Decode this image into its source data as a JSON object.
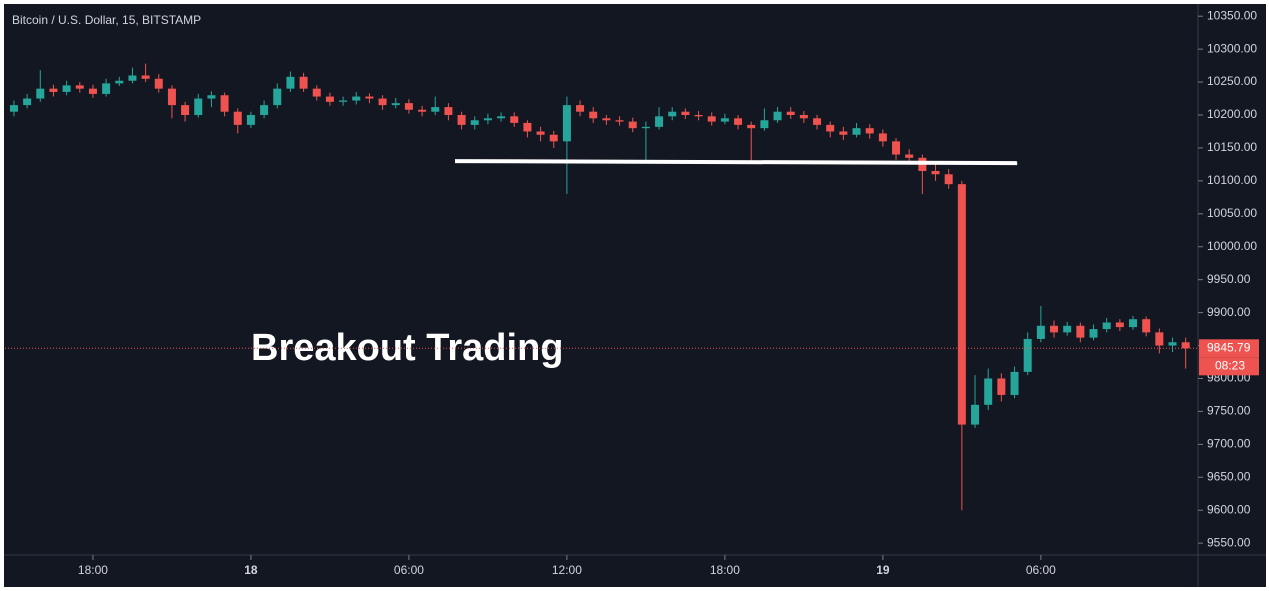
{
  "chart_data": {
    "type": "candlestick",
    "title": "Bitcoin / U.S. Dollar, 15, BITSTAMP",
    "annotation": "Breakout Trading",
    "breakout_line": {
      "x": [
        31.75,
        53.1
      ],
      "y": [
        10130,
        10127
      ],
      "color": "#ffffff"
    },
    "countdown": "08:23",
    "up_color": "#26a69a",
    "down_color": "#ef5350",
    "background": "#131722",
    "xlim": [
      14.66,
      59.93
    ],
    "xticks": [
      {
        "value": 18,
        "label": "18:00"
      },
      {
        "value": 24,
        "label": "18"
      },
      {
        "value": 30,
        "label": "06:00"
      },
      {
        "value": 36,
        "label": "12:00"
      },
      {
        "value": 42,
        "label": "18:00"
      },
      {
        "value": 48,
        "label": "19"
      },
      {
        "value": 54,
        "label": "06:00"
      }
    ],
    "ylim": [
      9532,
      10367
    ],
    "yticks": [
      {
        "value": 9550,
        "label": "9550.00"
      },
      {
        "value": 9600,
        "label": "9600.00"
      },
      {
        "value": 9650,
        "label": "9650.00"
      },
      {
        "value": 9700,
        "label": "9700.00"
      },
      {
        "value": 9750,
        "label": "9750.00"
      },
      {
        "value": 9800,
        "label": "9800.00"
      },
      {
        "value": 9850,
        "label": "9850.00"
      },
      {
        "value": 9900,
        "label": "9900.00"
      },
      {
        "value": 9950,
        "label": "9950.00"
      },
      {
        "value": 10000,
        "label": "10000.00"
      },
      {
        "value": 10050,
        "label": "10050.00"
      },
      {
        "value": 10100,
        "label": "10100.00"
      },
      {
        "value": 10150,
        "label": "10150.00"
      },
      {
        "value": 10200,
        "label": "10200.00"
      },
      {
        "value": 10250,
        "label": "10250.00"
      },
      {
        "value": 10300,
        "label": "10300.00"
      },
      {
        "value": 10350,
        "label": "10350.00"
      }
    ],
    "x": [
      15,
      15.5,
      16,
      16.5,
      17,
      17.5,
      18,
      18.5,
      19,
      19.5,
      20,
      20.5,
      21,
      21.5,
      22,
      22.5,
      23,
      23.5,
      24,
      24.5,
      25,
      25.5,
      26,
      26.5,
      27,
      27.5,
      28,
      28.5,
      29,
      29.5,
      30,
      30.5,
      31,
      31.5,
      32,
      32.5,
      33,
      33.5,
      34,
      34.5,
      35,
      35.5,
      36,
      36.5,
      37,
      37.5,
      38,
      38.5,
      39,
      39.5,
      40,
      40.5,
      41,
      41.5,
      42,
      42.5,
      43,
      43.5,
      44,
      44.5,
      45,
      45.5,
      46,
      46.5,
      47,
      47.5,
      48,
      48.5,
      49,
      49.5,
      50,
      50.5,
      51,
      51.5,
      52,
      52.5,
      53,
      53.5,
      54,
      54.5,
      55,
      55.5,
      56,
      56.5,
      57,
      57.5,
      58,
      58.5,
      59,
      59.5
    ],
    "open": [
      10205,
      10215,
      10225,
      10240,
      10235,
      10245,
      10240,
      10232,
      10248,
      10252,
      10260,
      10255,
      10240,
      10215,
      10200,
      10225,
      10230,
      10205,
      10185,
      10200,
      10215,
      10240,
      10258,
      10240,
      10228,
      10220,
      10222,
      10228,
      10225,
      10215,
      10218,
      10208,
      10205,
      10212,
      10200,
      10185,
      10192,
      10195,
      10198,
      10188,
      10175,
      10170,
      10160,
      10215,
      10205,
      10195,
      10192,
      10190,
      10180,
      10182,
      10198,
      10205,
      10200,
      10198,
      10190,
      10195,
      10185,
      10180,
      10192,
      10205,
      10200,
      10195,
      10185,
      10175,
      10170,
      10180,
      10172,
      10160,
      10140,
      10135,
      10115,
      10110,
      10095,
      9730,
      9760,
      9800,
      9775,
      9810,
      9860,
      9880,
      9870,
      9880,
      9862,
      9875,
      9885,
      9878,
      9890,
      9870,
      9850,
      9855
    ],
    "high": [
      10222,
      10232,
      10268,
      10246,
      10252,
      10250,
      10246,
      10255,
      10258,
      10272,
      10278,
      10262,
      10245,
      10220,
      10232,
      10236,
      10234,
      10210,
      10205,
      10222,
      10248,
      10266,
      10264,
      10245,
      10234,
      10228,
      10235,
      10233,
      10230,
      10226,
      10224,
      10214,
      10228,
      10218,
      10205,
      10198,
      10202,
      10204,
      10204,
      10192,
      10182,
      10176,
      10228,
      10222,
      10212,
      10200,
      10198,
      10196,
      10190,
      10212,
      10212,
      10210,
      10206,
      10204,
      10202,
      10200,
      10190,
      10210,
      10212,
      10212,
      10206,
      10200,
      10190,
      10182,
      10188,
      10186,
      10178,
      10165,
      10148,
      10140,
      10125,
      10118,
      10100,
      9805,
      9815,
      9808,
      9818,
      9870,
      9910,
      9888,
      9886,
      9885,
      9882,
      9892,
      9890,
      9895,
      9894,
      9876,
      9862,
      9862
    ],
    "low": [
      10198,
      10210,
      10220,
      10228,
      10230,
      10234,
      10226,
      10228,
      10244,
      10248,
      10250,
      10234,
      10195,
      10190,
      10196,
      10212,
      10198,
      10172,
      10180,
      10195,
      10210,
      10235,
      10235,
      10222,
      10214,
      10214,
      10216,
      10218,
      10208,
      10210,
      10202,
      10198,
      10200,
      10192,
      10178,
      10178,
      10186,
      10190,
      10182,
      10166,
      10160,
      10150,
      10080,
      10198,
      10188,
      10185,
      10184,
      10174,
      10130,
      10178,
      10192,
      10194,
      10192,
      10184,
      10186,
      10178,
      10130,
      10176,
      10188,
      10194,
      10188,
      10178,
      10166,
      10162,
      10166,
      10164,
      10152,
      10132,
      10125,
      10080,
      10100,
      10088,
      9600,
      9725,
      9752,
      9765,
      9770,
      9805,
      9855,
      9862,
      9865,
      9855,
      9858,
      9870,
      9872,
      9874,
      9864,
      9838,
      9840,
      9815
    ],
    "close": [
      10215,
      10225,
      10240,
      10235,
      10245,
      10240,
      10232,
      10248,
      10252,
      10260,
      10255,
      10240,
      10215,
      10200,
      10225,
      10230,
      10205,
      10185,
      10200,
      10215,
      10240,
      10258,
      10240,
      10228,
      10220,
      10222,
      10228,
      10225,
      10215,
      10218,
      10208,
      10205,
      10212,
      10200,
      10185,
      10192,
      10195,
      10198,
      10188,
      10175,
      10170,
      10160,
      10215,
      10205,
      10195,
      10192,
      10190,
      10180,
      10182,
      10198,
      10205,
      10200,
      10198,
      10190,
      10195,
      10185,
      10180,
      10192,
      10205,
      10200,
      10195,
      10185,
      10175,
      10170,
      10180,
      10172,
      10160,
      10140,
      10135,
      10115,
      10110,
      10095,
      9730,
      9760,
      9800,
      9775,
      9810,
      9860,
      9880,
      9870,
      9880,
      9862,
      9875,
      9885,
      9878,
      9890,
      9870,
      9850,
      9855,
      9845.79
    ]
  }
}
